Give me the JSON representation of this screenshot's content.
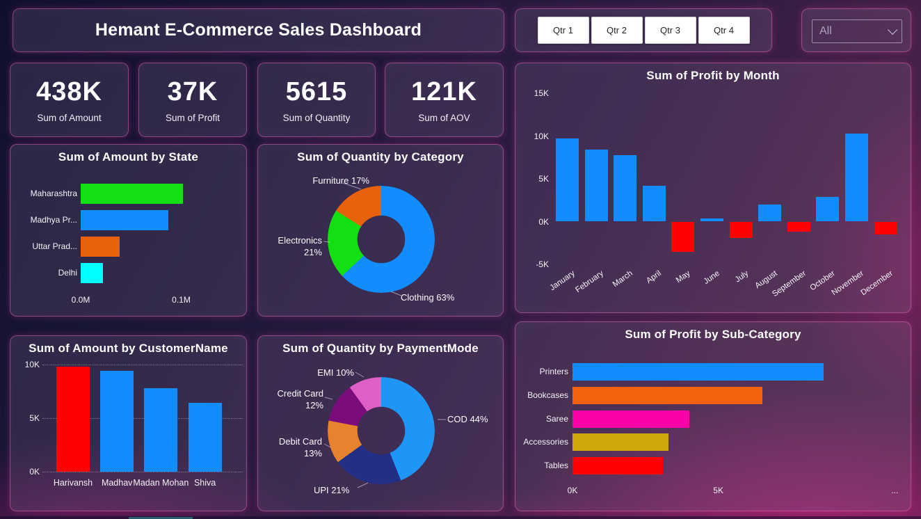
{
  "title": "Hemant E-Commerce Sales Dashboard",
  "filters": {
    "quarter_buttons": [
      "Qtr 1",
      "Qtr 2",
      "Qtr 3",
      "Qtr 4"
    ],
    "dropdown_value": "All"
  },
  "kpis": [
    {
      "value": "438K",
      "label": "Sum of Amount"
    },
    {
      "value": "37K",
      "label": "Sum of Profit"
    },
    {
      "value": "5615",
      "label": "Sum of Quantity"
    },
    {
      "value": "121K",
      "label": "Sum of AOV"
    }
  ],
  "chart_data": [
    {
      "id": "amount_by_state",
      "type": "bar",
      "orientation": "horizontal",
      "title": "Sum of Amount by State",
      "categories": [
        "Maharashtra",
        "Madhya Pr...",
        "Uttar Prad...",
        "Delhi"
      ],
      "values": [
        0.102,
        0.087,
        0.039,
        0.022
      ],
      "unit": "M",
      "bar_colors": [
        "#12e012",
        "#118dff",
        "#e8610c",
        "#00ffff"
      ],
      "x_tick_labels": [
        "0.0M",
        "0.1M"
      ],
      "xlim": [
        0,
        0.155
      ],
      "grid": false
    },
    {
      "id": "quantity_by_category",
      "type": "donut",
      "title": "Sum of Quantity by Category",
      "slices": [
        {
          "label": "Clothing",
          "pct": 63,
          "color": "#118dff"
        },
        {
          "label": "Electronics",
          "pct": 21,
          "color": "#12e012"
        },
        {
          "label": "Furniture",
          "pct": 17,
          "color": "#e8610c"
        }
      ]
    },
    {
      "id": "profit_by_month",
      "type": "bar",
      "orientation": "vertical",
      "title": "Sum of Profit by Month",
      "categories": [
        "January",
        "February",
        "March",
        "April",
        "May",
        "June",
        "July",
        "August",
        "September",
        "October",
        "November",
        "December"
      ],
      "values": [
        9.7,
        8.4,
        7.8,
        4.2,
        -3.5,
        0.4,
        -1.9,
        2.0,
        -1.2,
        2.9,
        10.3,
        -1.5
      ],
      "unit": "K",
      "positive_color": "#118dff",
      "negative_color": "#fe0000",
      "y_tick_labels": [
        "15K",
        "10K",
        "5K",
        "0K",
        "-5K"
      ],
      "ylim": [
        -5,
        15
      ],
      "grid": false
    },
    {
      "id": "amount_by_customer",
      "type": "bar",
      "orientation": "vertical",
      "title": "Sum of Amount by CustomerName",
      "categories": [
        "Harivansh",
        "Madhav",
        "Madan Mohan",
        "Shiva"
      ],
      "values": [
        9.8,
        9.4,
        7.8,
        6.4
      ],
      "unit": "K",
      "bar_colors": [
        "#fe0000",
        "#118dff",
        "#118dff",
        "#118dff"
      ],
      "y_tick_labels": [
        "10K",
        "5K",
        "0K"
      ],
      "ylim": [
        0,
        10
      ],
      "grid": true
    },
    {
      "id": "quantity_by_paymentmode",
      "type": "donut",
      "title": "Sum of Quantity by PaymentMode",
      "slices": [
        {
          "label": "COD",
          "pct": 44,
          "color": "#1e96f7"
        },
        {
          "label": "UPI",
          "pct": 21,
          "color": "#232e85"
        },
        {
          "label": "Debit Card",
          "pct": 13,
          "color": "#e7822d"
        },
        {
          "label": "Credit Card",
          "pct": 12,
          "color": "#7b0c7b"
        },
        {
          "label": "EMI",
          "pct": 10,
          "color": "#de5fc6"
        }
      ]
    },
    {
      "id": "profit_by_subcategory",
      "type": "bar",
      "orientation": "horizontal",
      "title": "Sum of Profit by Sub-Category",
      "categories": [
        "Printers",
        "Bookcases",
        "Saree",
        "Accessories",
        "Tables"
      ],
      "values": [
        8.6,
        6.5,
        4.0,
        3.3,
        3.1
      ],
      "unit": "K",
      "bar_colors": [
        "#118dff",
        "#f2620c",
        "#fb02a8",
        "#cca808",
        "#fe0000"
      ],
      "x_tick_labels": [
        "0K",
        "5K",
        "..."
      ],
      "xlim": [
        0,
        11.4
      ],
      "grid": false
    }
  ]
}
